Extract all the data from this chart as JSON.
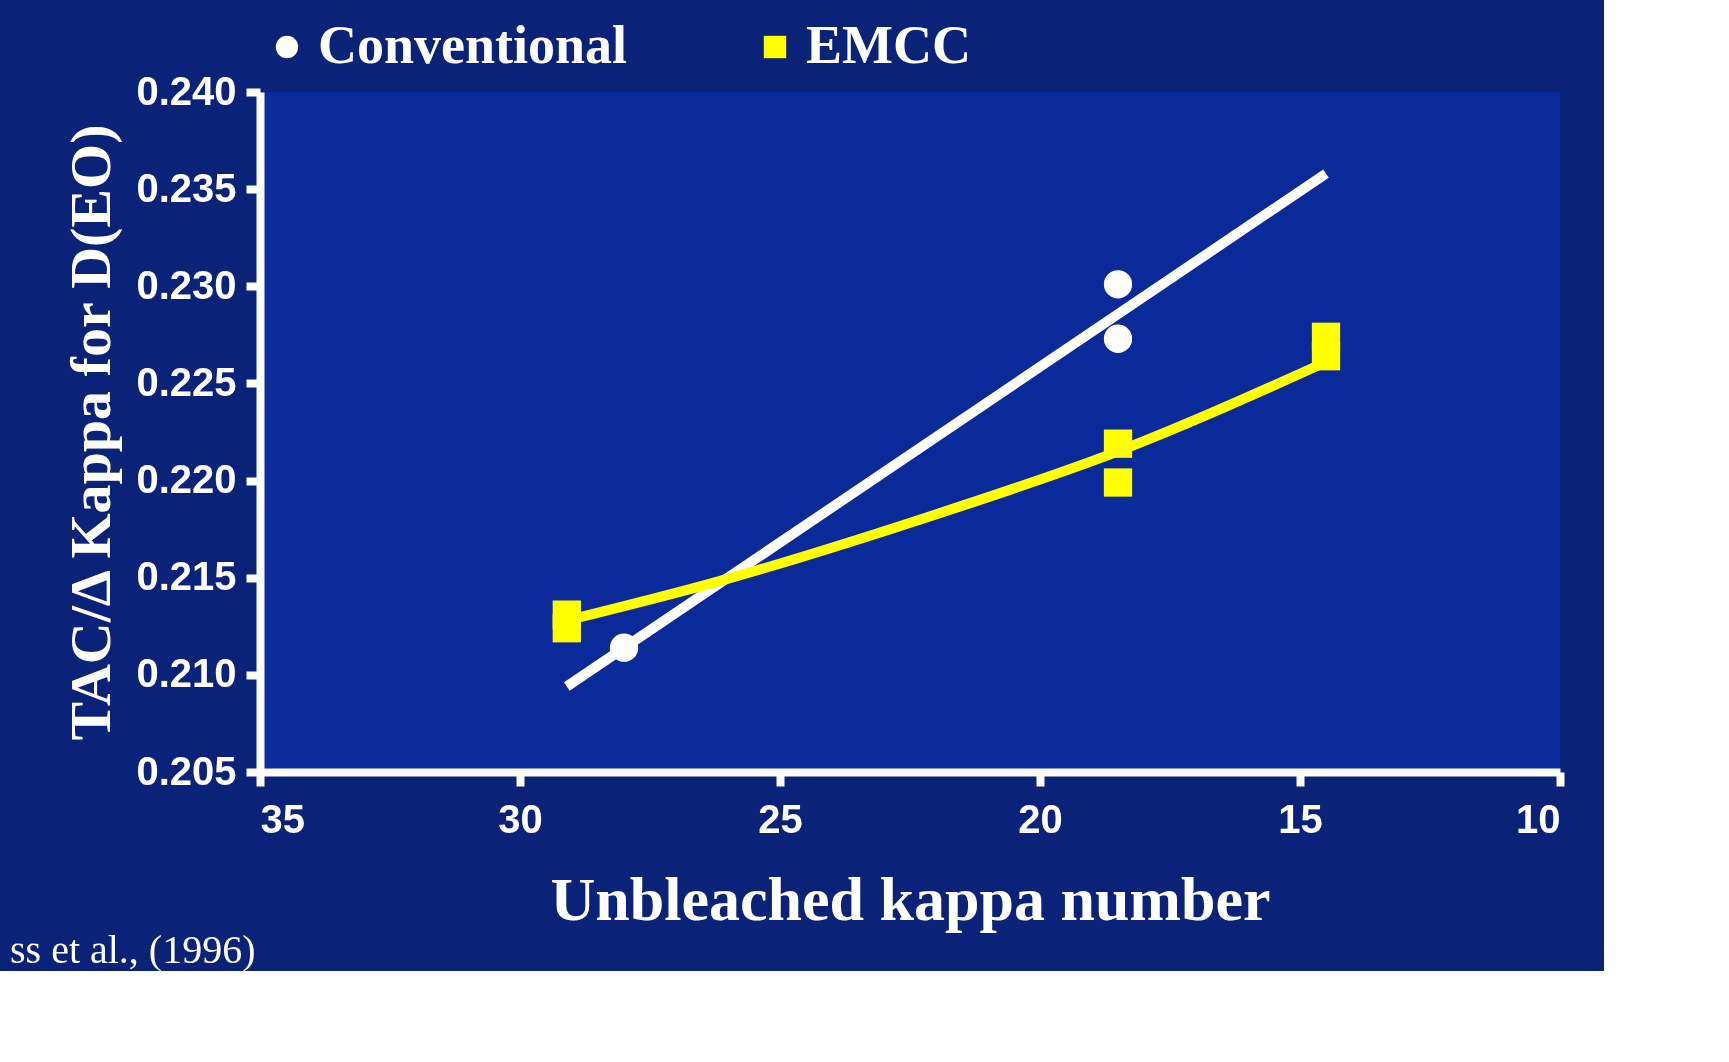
{
  "chart_data": {
    "type": "scatter",
    "xlabel": "Unbleached kappa number",
    "ylabel": "TAC/Δ Kappa for D(EO)",
    "annotations": [
      "ss et al., (1996)"
    ],
    "xlim": [
      35,
      10
    ],
    "xticks": [
      35,
      30,
      25,
      20,
      15,
      10
    ],
    "ylim": [
      0.205,
      0.24
    ],
    "yticks": [
      {
        "value": 0.205,
        "label": "0.205"
      },
      {
        "value": 0.21,
        "label": "0.210"
      },
      {
        "value": 0.215,
        "label": "0.215"
      },
      {
        "value": 0.22,
        "label": "0.220"
      },
      {
        "value": 0.225,
        "label": "0.225"
      },
      {
        "value": 0.23,
        "label": "0.230"
      },
      {
        "value": 0.235,
        "label": "0.235"
      },
      {
        "value": 0.24,
        "label": "0.240"
      }
    ],
    "grid": false,
    "legend": "top",
    "series": [
      {
        "name": "Conventional",
        "marker": "circle",
        "color": "#ffffff",
        "x": [
          28.0,
          18.5,
          18.5
        ],
        "values": [
          0.2114,
          0.2301,
          0.2273
        ]
      },
      {
        "name": "EMCC",
        "marker": "square",
        "color": "#ffff00",
        "x": [
          29.1,
          29.1,
          18.5,
          18.5,
          14.5,
          14.5
        ],
        "values": [
          0.2131,
          0.2124,
          0.2219,
          0.2199,
          0.2274,
          0.2264
        ]
      },
      {
        "type": "line",
        "color": "#ffffff",
        "line_style": "solid",
        "x": [
          29.1,
          14.5
        ],
        "values": [
          0.2094,
          0.2358
        ]
      },
      {
        "type": "line",
        "color": "#ffff00",
        "line_style": "solid",
        "x": [
          29.1,
          26.2,
          22.3,
          18.5,
          14.5
        ],
        "values": [
          0.2128,
          0.2148,
          0.218,
          0.2215,
          0.2261
        ]
      }
    ]
  }
}
